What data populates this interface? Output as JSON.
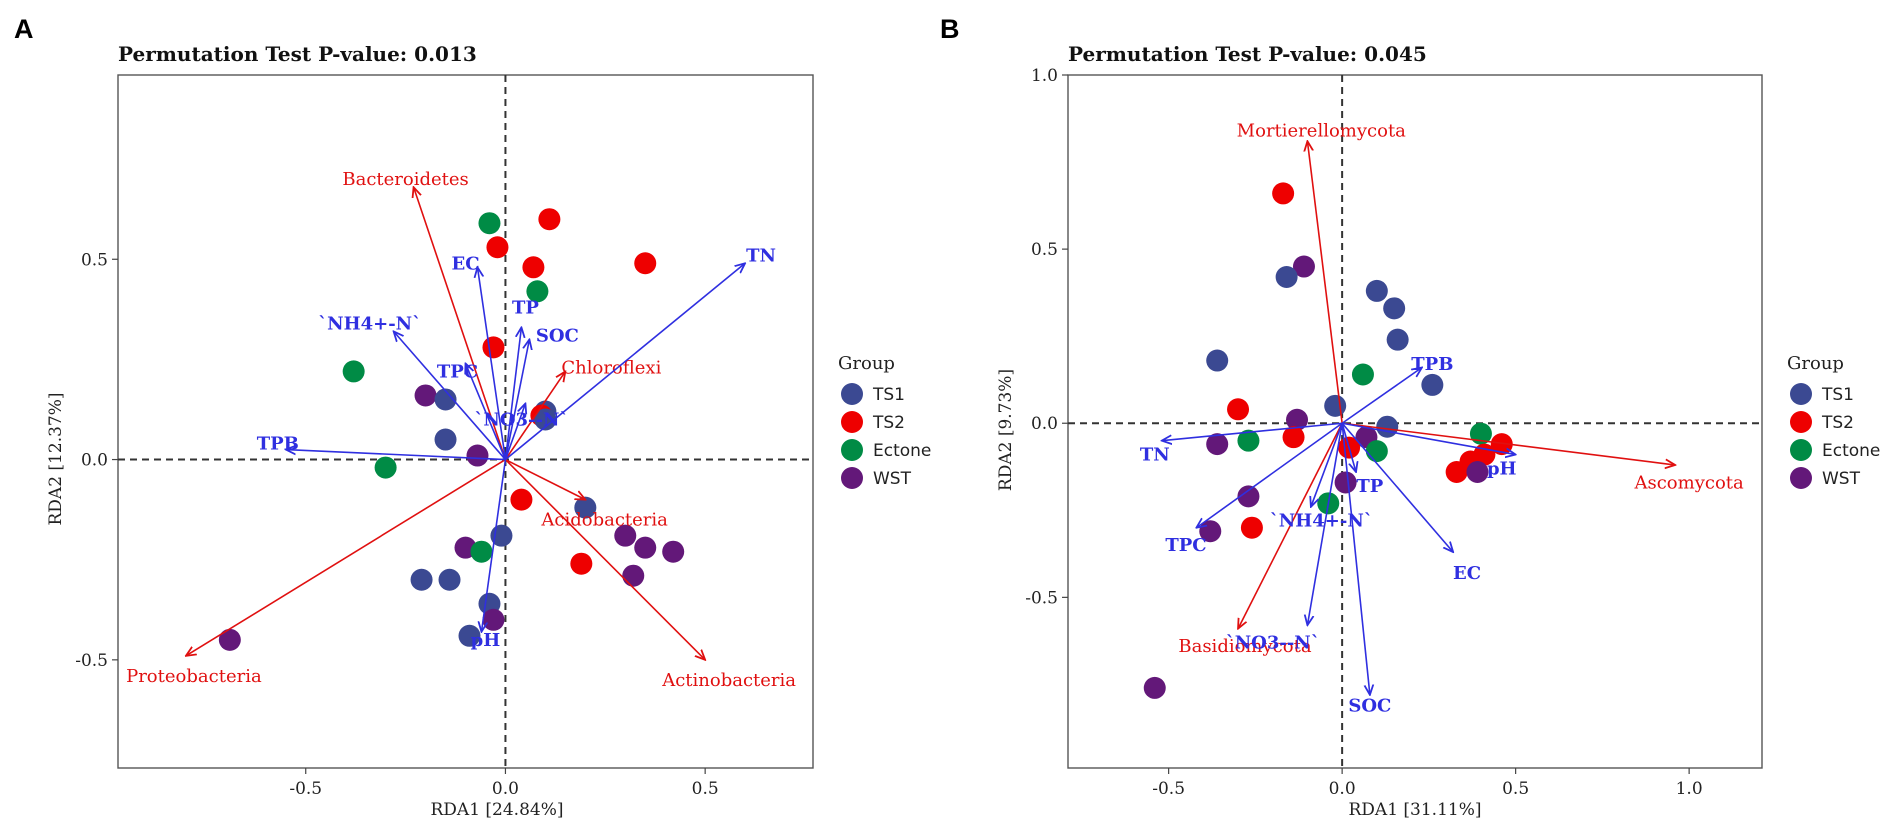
{
  "figure": {
    "panels": [
      "A",
      "B"
    ]
  },
  "legend": {
    "title": "Group",
    "items": [
      {
        "label": "TS1",
        "color": "#3B4992"
      },
      {
        "label": "TS2",
        "color": "#EE0000"
      },
      {
        "label": "Ectone",
        "color": "#008B45"
      },
      {
        "label": "WST",
        "color": "#631879"
      }
    ]
  },
  "colors": {
    "env_vector": "#2F2FE0",
    "species_vector": "#E01010"
  },
  "chart_data": [
    {
      "type": "scatter",
      "panel": "A",
      "title": "Permutation Test P-value: 0.013",
      "xlabel": "RDA1 [24.84%]",
      "ylabel": "RDA2 [12.37%]",
      "xlim": [
        -0.97,
        0.77
      ],
      "ylim": [
        -0.77,
        0.96
      ],
      "xticks": [
        -0.5,
        0.0,
        0.5
      ],
      "xtick_labels": [
        "-0.5",
        "0.0",
        "0.5"
      ],
      "yticks": [
        -0.5,
        0.0,
        0.5
      ],
      "ytick_labels": [
        "-0.5",
        "0.0",
        "0.5"
      ],
      "env_vectors": [
        {
          "label": "TN",
          "x": 0.6,
          "y": 0.49,
          "lx": 0.64,
          "ly": 0.51,
          "anchor": "middle"
        },
        {
          "label": "EC",
          "x": -0.07,
          "y": 0.48,
          "lx": -0.1,
          "ly": 0.49,
          "anchor": "middle"
        },
        {
          "label": "TP",
          "x": 0.04,
          "y": 0.33,
          "lx": 0.05,
          "ly": 0.38,
          "anchor": "middle"
        },
        {
          "label": "SOC",
          "x": 0.06,
          "y": 0.3,
          "lx": 0.13,
          "ly": 0.31,
          "anchor": "middle"
        },
        {
          "label": "`NH4+-N`",
          "x": -0.28,
          "y": 0.32,
          "lx": -0.34,
          "ly": 0.34,
          "anchor": "middle"
        },
        {
          "label": "TPC",
          "x": -0.1,
          "y": 0.24,
          "lx": -0.12,
          "ly": 0.22,
          "anchor": "middle"
        },
        {
          "label": "`NO3--N`",
          "x": 0.05,
          "y": 0.14,
          "lx": 0.04,
          "ly": 0.1,
          "anchor": "middle"
        },
        {
          "label": "TPB",
          "x": -0.55,
          "y": 0.025,
          "lx": -0.57,
          "ly": 0.04,
          "anchor": "middle"
        },
        {
          "label": "pH",
          "x": -0.06,
          "y": -0.43,
          "lx": -0.05,
          "ly": -0.45,
          "anchor": "middle"
        }
      ],
      "species_vectors": [
        {
          "label": "Bacteroidetes",
          "x": -0.23,
          "y": 0.68,
          "lx": -0.25,
          "ly": 0.7,
          "anchor": "middle"
        },
        {
          "label": "Chloroflexi",
          "x": 0.15,
          "y": 0.22,
          "lx": 0.14,
          "ly": 0.23,
          "anchor": "start"
        },
        {
          "label": "Acidobacteria",
          "x": 0.2,
          "y": -0.1,
          "lx": 0.09,
          "ly": -0.15,
          "anchor": "start"
        },
        {
          "label": "Actinobacteria",
          "x": 0.5,
          "y": -0.5,
          "lx": 0.56,
          "ly": -0.55,
          "anchor": "middle"
        },
        {
          "label": "Proteobacteria",
          "x": -0.8,
          "y": -0.49,
          "lx": -0.78,
          "ly": -0.54,
          "anchor": "middle"
        }
      ],
      "points": [
        {
          "x": -0.04,
          "y": 0.59,
          "group": "Ectone"
        },
        {
          "x": 0.11,
          "y": 0.6,
          "group": "TS2"
        },
        {
          "x": -0.02,
          "y": 0.53,
          "group": "TS2"
        },
        {
          "x": 0.07,
          "y": 0.48,
          "group": "TS2"
        },
        {
          "x": 0.35,
          "y": 0.49,
          "group": "TS2"
        },
        {
          "x": 0.08,
          "y": 0.42,
          "group": "Ectone"
        },
        {
          "x": -0.03,
          "y": 0.28,
          "group": "TS2"
        },
        {
          "x": -0.38,
          "y": 0.22,
          "group": "Ectone"
        },
        {
          "x": -0.2,
          "y": 0.16,
          "group": "WST"
        },
        {
          "x": -0.15,
          "y": 0.15,
          "group": "TS1"
        },
        {
          "x": 0.1,
          "y": 0.12,
          "group": "TS1"
        },
        {
          "x": 0.09,
          "y": 0.11,
          "group": "TS2"
        },
        {
          "x": 0.1,
          "y": 0.1,
          "group": "TS1"
        },
        {
          "x": -0.15,
          "y": 0.05,
          "group": "TS1"
        },
        {
          "x": -0.07,
          "y": 0.01,
          "group": "WST"
        },
        {
          "x": -0.3,
          "y": -0.02,
          "group": "Ectone"
        },
        {
          "x": 0.04,
          "y": -0.1,
          "group": "TS2"
        },
        {
          "x": 0.2,
          "y": -0.12,
          "group": "TS1"
        },
        {
          "x": -0.01,
          "y": -0.19,
          "group": "TS1"
        },
        {
          "x": 0.3,
          "y": -0.19,
          "group": "WST"
        },
        {
          "x": 0.35,
          "y": -0.22,
          "group": "WST"
        },
        {
          "x": 0.42,
          "y": -0.23,
          "group": "WST"
        },
        {
          "x": -0.1,
          "y": -0.22,
          "group": "WST"
        },
        {
          "x": -0.06,
          "y": -0.23,
          "group": "Ectone"
        },
        {
          "x": 0.19,
          "y": -0.26,
          "group": "TS2"
        },
        {
          "x": 0.32,
          "y": -0.29,
          "group": "WST"
        },
        {
          "x": -0.21,
          "y": -0.3,
          "group": "TS1"
        },
        {
          "x": -0.14,
          "y": -0.3,
          "group": "TS1"
        },
        {
          "x": -0.04,
          "y": -0.36,
          "group": "TS1"
        },
        {
          "x": -0.03,
          "y": -0.4,
          "group": "WST"
        },
        {
          "x": -0.09,
          "y": -0.44,
          "group": "TS1"
        },
        {
          "x": -0.69,
          "y": -0.45,
          "group": "WST"
        }
      ]
    },
    {
      "type": "scatter",
      "panel": "B",
      "title": "Permutation Test P-value: 0.045",
      "xlabel": "RDA1 [31.11%]",
      "ylabel": "RDA2 [9.73%]",
      "xlim": [
        -0.79,
        1.21
      ],
      "ylim": [
        -0.99,
        1.0
      ],
      "xticks": [
        -0.5,
        0.0,
        0.5,
        1.0
      ],
      "xtick_labels": [
        "-0.5",
        "0.0",
        "0.5",
        "1.0"
      ],
      "yticks": [
        -0.5,
        0.0,
        0.5,
        1.0
      ],
      "ytick_labels": [
        "-0.5",
        "0.0",
        "0.5",
        "1.0"
      ],
      "env_vectors": [
        {
          "label": "TPB",
          "x": 0.23,
          "y": 0.16,
          "lx": 0.26,
          "ly": 0.17,
          "anchor": "middle"
        },
        {
          "label": "TN",
          "x": -0.52,
          "y": -0.05,
          "lx": -0.54,
          "ly": -0.09,
          "anchor": "middle"
        },
        {
          "label": "pH",
          "x": 0.5,
          "y": -0.09,
          "lx": 0.46,
          "ly": -0.13,
          "anchor": "middle"
        },
        {
          "label": "TP",
          "x": 0.04,
          "y": -0.14,
          "lx": 0.08,
          "ly": -0.18,
          "anchor": "middle"
        },
        {
          "label": "`NH4+-N`",
          "x": -0.09,
          "y": -0.24,
          "lx": -0.06,
          "ly": -0.28,
          "anchor": "middle"
        },
        {
          "label": "EC",
          "x": 0.32,
          "y": -0.37,
          "lx": 0.36,
          "ly": -0.43,
          "anchor": "middle"
        },
        {
          "label": "TPC",
          "x": -0.42,
          "y": -0.3,
          "lx": -0.45,
          "ly": -0.35,
          "anchor": "middle"
        },
        {
          "label": "`NO3--N`",
          "x": -0.1,
          "y": -0.58,
          "lx": -0.2,
          "ly": -0.63,
          "anchor": "middle"
        },
        {
          "label": "SOC",
          "x": 0.08,
          "y": -0.78,
          "lx": 0.08,
          "ly": -0.81,
          "anchor": "middle"
        }
      ],
      "species_vectors": [
        {
          "label": "Mortierellomycota",
          "x": -0.1,
          "y": 0.81,
          "lx": -0.06,
          "ly": 0.84,
          "anchor": "middle"
        },
        {
          "label": "Ascomycota",
          "x": 0.96,
          "y": -0.12,
          "lx": 1.0,
          "ly": -0.17,
          "anchor": "middle"
        },
        {
          "label": "Basidiomycota",
          "x": -0.3,
          "y": -0.59,
          "lx": -0.28,
          "ly": -0.64,
          "anchor": "middle"
        }
      ],
      "points": [
        {
          "x": -0.17,
          "y": 0.66,
          "group": "TS2"
        },
        {
          "x": -0.11,
          "y": 0.45,
          "group": "WST"
        },
        {
          "x": -0.16,
          "y": 0.42,
          "group": "TS1"
        },
        {
          "x": 0.1,
          "y": 0.38,
          "group": "TS1"
        },
        {
          "x": 0.15,
          "y": 0.33,
          "group": "TS1"
        },
        {
          "x": 0.16,
          "y": 0.24,
          "group": "TS1"
        },
        {
          "x": -0.36,
          "y": 0.18,
          "group": "TS1"
        },
        {
          "x": 0.06,
          "y": 0.14,
          "group": "Ectone"
        },
        {
          "x": 0.26,
          "y": 0.11,
          "group": "TS1"
        },
        {
          "x": -0.3,
          "y": 0.04,
          "group": "TS2"
        },
        {
          "x": -0.02,
          "y": 0.05,
          "group": "TS1"
        },
        {
          "x": -0.13,
          "y": 0.01,
          "group": "WST"
        },
        {
          "x": 0.13,
          "y": -0.01,
          "group": "TS1"
        },
        {
          "x": 0.4,
          "y": -0.03,
          "group": "Ectone"
        },
        {
          "x": -0.14,
          "y": -0.04,
          "group": "TS2"
        },
        {
          "x": 0.07,
          "y": -0.04,
          "group": "WST"
        },
        {
          "x": -0.36,
          "y": -0.06,
          "group": "WST"
        },
        {
          "x": -0.27,
          "y": -0.05,
          "group": "Ectone"
        },
        {
          "x": 0.46,
          "y": -0.06,
          "group": "TS2"
        },
        {
          "x": 0.02,
          "y": -0.07,
          "group": "TS2"
        },
        {
          "x": 0.1,
          "y": -0.08,
          "group": "Ectone"
        },
        {
          "x": 0.41,
          "y": -0.09,
          "group": "TS2"
        },
        {
          "x": 0.37,
          "y": -0.11,
          "group": "TS2"
        },
        {
          "x": 0.33,
          "y": -0.14,
          "group": "TS2"
        },
        {
          "x": 0.39,
          "y": -0.14,
          "group": "WST"
        },
        {
          "x": 0.01,
          "y": -0.17,
          "group": "WST"
        },
        {
          "x": -0.27,
          "y": -0.21,
          "group": "WST"
        },
        {
          "x": -0.04,
          "y": -0.23,
          "group": "Ectone"
        },
        {
          "x": -0.26,
          "y": -0.3,
          "group": "TS2"
        },
        {
          "x": -0.38,
          "y": -0.31,
          "group": "WST"
        },
        {
          "x": -0.54,
          "y": -0.76,
          "group": "WST"
        }
      ]
    }
  ]
}
